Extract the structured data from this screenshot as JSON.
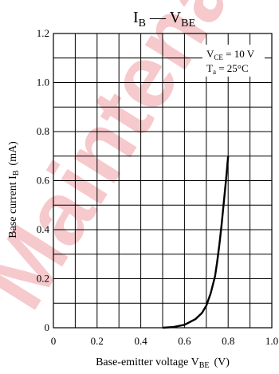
{
  "chart_data": {
    "type": "line",
    "title": "I",
    "title_sub_main": "B",
    "title_sep": " — V",
    "title_sub_second": "BE",
    "xlabel": "Base-emitter voltage  V",
    "xlabel_sub": "BE",
    "xlabel_unit": "(V)",
    "ylabel": "Base current  I",
    "ylabel_sub": "B",
    "ylabel_unit": "(mA)",
    "xlim": [
      0,
      1.0
    ],
    "ylim": [
      0,
      1.2
    ],
    "x_ticks": [
      "0",
      "0.2",
      "0.4",
      "0.6",
      "0.8",
      "1.0"
    ],
    "y_ticks": [
      "0",
      "0.2",
      "0.4",
      "0.6",
      "0.8",
      "1.0",
      "1.2"
    ],
    "grid": true,
    "annotations": [
      {
        "text": "V",
        "sub": "CE",
        "rest": " = 10 V"
      },
      {
        "text": "T",
        "sub": "a",
        "rest": " = 25°C"
      }
    ],
    "series": [
      {
        "x": [
          0.5,
          0.55,
          0.6,
          0.65,
          0.68,
          0.7,
          0.72,
          0.74,
          0.75,
          0.76,
          0.77,
          0.78,
          0.79,
          0.8
        ],
        "y": [
          0.0,
          0.003,
          0.012,
          0.035,
          0.06,
          0.09,
          0.14,
          0.21,
          0.27,
          0.34,
          0.42,
          0.51,
          0.6,
          0.7
        ]
      }
    ],
    "watermark": "Maintenance"
  }
}
